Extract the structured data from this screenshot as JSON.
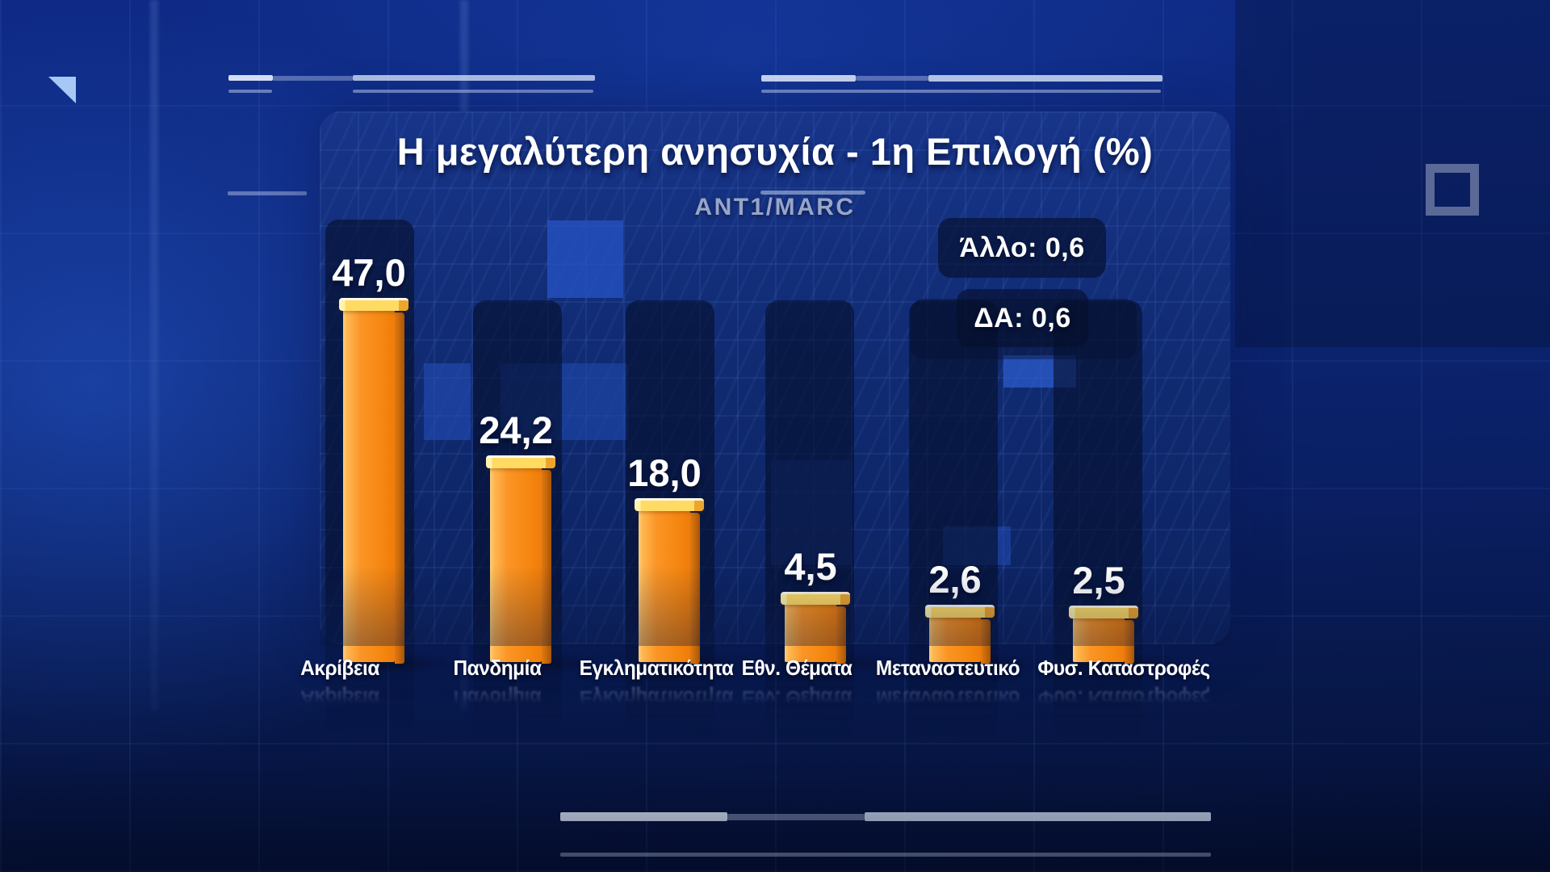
{
  "title": "Η μεγαλύτερη ανησυχία - 1η Επιλογή (%)",
  "source": "ANT1/MARC",
  "chart_data": {
    "type": "bar",
    "title": "Η μεγαλύτερη ανησυχία - 1η Επιλογή (%)",
    "source": "ANT1/MARC",
    "unit": "%",
    "ylim": [
      0,
      50
    ],
    "grid": false,
    "legend": "none",
    "categories": [
      "Ακρίβεια",
      "Πανδημία",
      "Εγκληματικότητα",
      "Εθν. Θέματα",
      "Μεταναστευτικό",
      "Φυσ. Καταστροφές"
    ],
    "values": [
      47.0,
      24.2,
      18.0,
      4.5,
      2.6,
      2.5
    ],
    "value_labels": [
      "47,0",
      "24,2",
      "18,0",
      "4,5",
      "2,6",
      "2,5"
    ],
    "annotations": [
      {
        "label": "Άλλο",
        "value": "0,6",
        "text": "Άλλο: 0,6"
      },
      {
        "label": "ΔΑ",
        "value": "0,6",
        "text": "ΔΑ: 0,6"
      }
    ],
    "bar_color": "#f78c1e",
    "bar_top_color": "#ffd863",
    "value_label_color": "#ffffff"
  },
  "accents": {
    "triangle_icon_color": "#a7c7f5",
    "square_outline_color": "#9ea8c6",
    "line_color": "#d5e0f5",
    "background_color": "#0c2473",
    "panel_color": "#122e77",
    "strip_color": "#081c4e",
    "muted_text_color": "#97a5c8"
  }
}
